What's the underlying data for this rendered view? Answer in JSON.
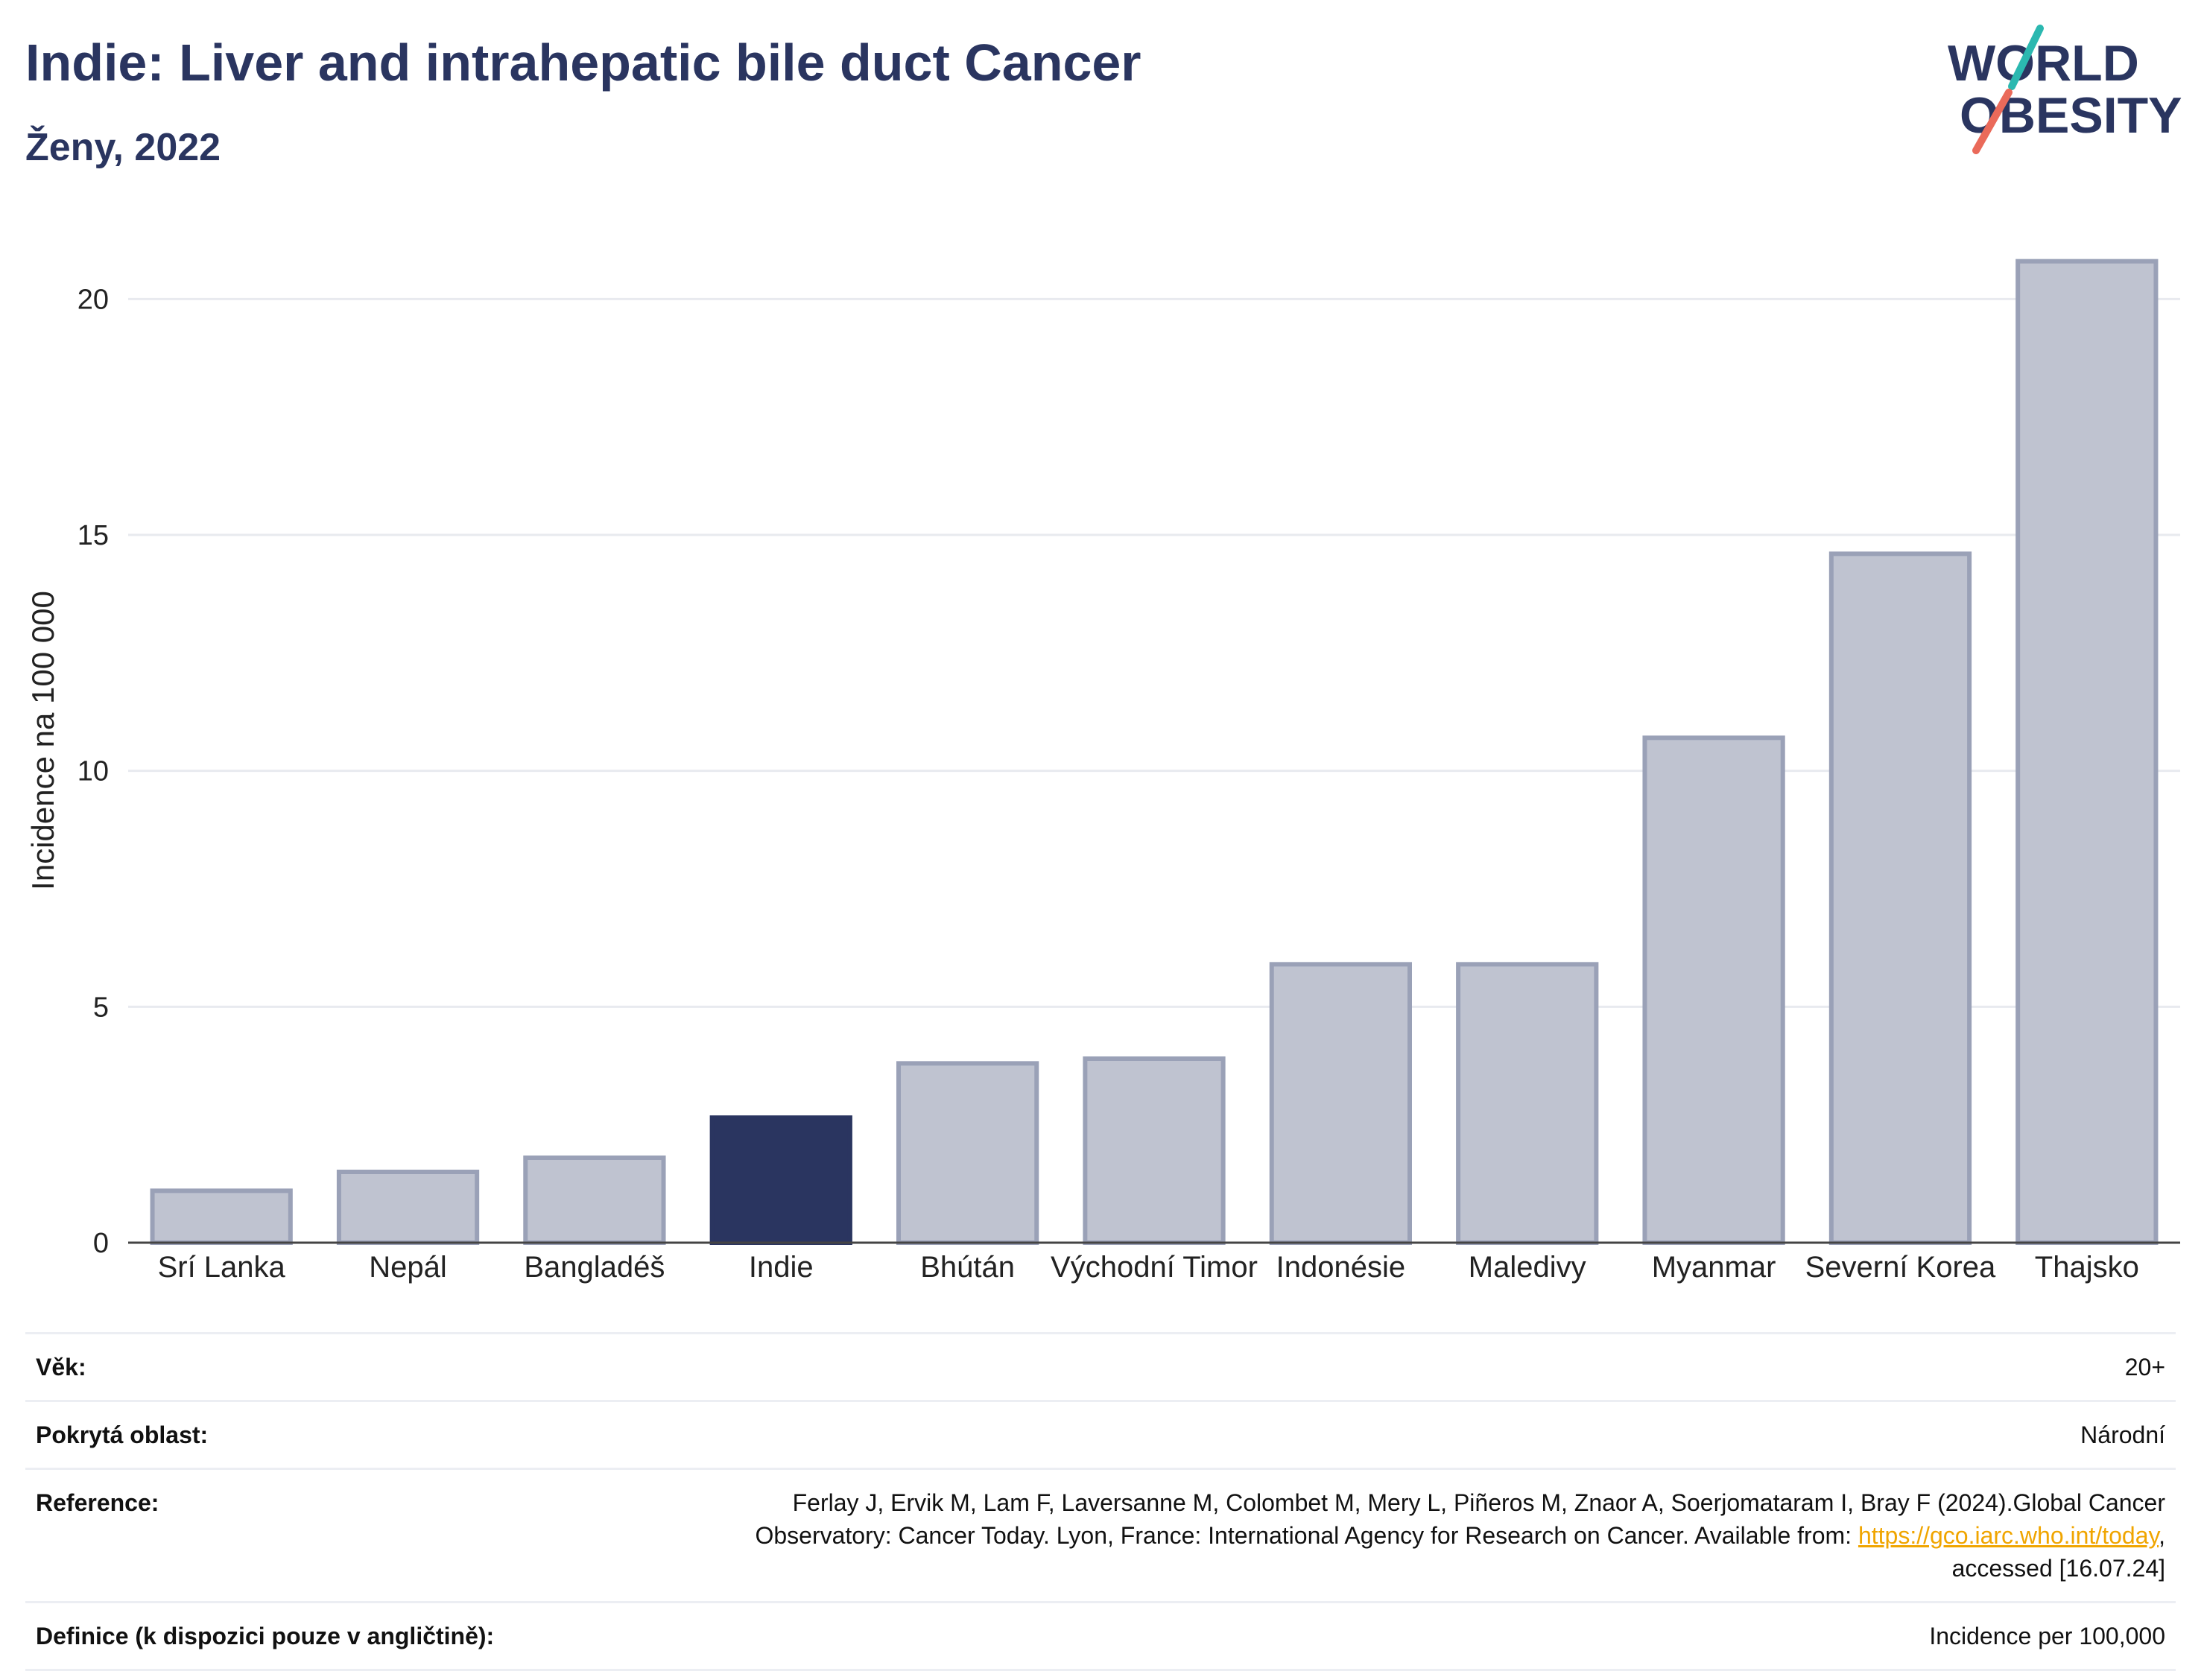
{
  "header": {
    "title": "Indie: Liver and intrahepatic bile duct Cancer",
    "subtitle": "Ženy, 2022"
  },
  "logo": {
    "line1": "WORLD",
    "line2": "OBESITY",
    "colors": {
      "text": "#2a3560",
      "slash_top": "#2bb8b0",
      "slash_bottom": "#ea6a5a"
    }
  },
  "chart_data": {
    "type": "bar",
    "categories": [
      "Srí Lanka",
      "Nepál",
      "Bangladéš",
      "Indie",
      "Bhútán",
      "Východní Timor",
      "Indonésie",
      "Maledivy",
      "Myanmar",
      "Severní Korea",
      "Thajsko"
    ],
    "values": [
      1.1,
      1.5,
      1.8,
      2.65,
      3.8,
      3.9,
      5.9,
      5.9,
      10.7,
      14.6,
      20.8
    ],
    "highlight": "Indie",
    "ylabel": "Incidence na 100 000",
    "xlabel": "",
    "ylim": [
      0,
      21.6
    ],
    "yticks": [
      0,
      5,
      10,
      15,
      20
    ],
    "grid": true,
    "colors": {
      "bar": "#bfc3d0",
      "bar_border": "#9aa1b7",
      "highlight": "#2a3560",
      "grid": "#e8eaef",
      "axis": "#444444"
    }
  },
  "info": {
    "rows": [
      {
        "key": "Věk:",
        "value": "20+"
      },
      {
        "key": "Pokrytá oblast:",
        "value": "Národní"
      },
      {
        "key": "Reference:",
        "value_line1": "Ferlay J, Ervik M, Lam F, Laversanne M, Colombet M, Mery L, Piñeros M, Znaor A, Soerjomataram I, Bray F (2024).Global Cancer",
        "value_line2": "Observatory: Cancer Today. Lyon, France: International Agency for Research on Cancer. Available from:",
        "link": "https://gco.iarc.who.int/today",
        "value_line3": "accessed [16.07.24]"
      },
      {
        "key": "Definice (k dispozici pouze v angličtině):",
        "value": "Incidence per 100,000"
      }
    ]
  }
}
